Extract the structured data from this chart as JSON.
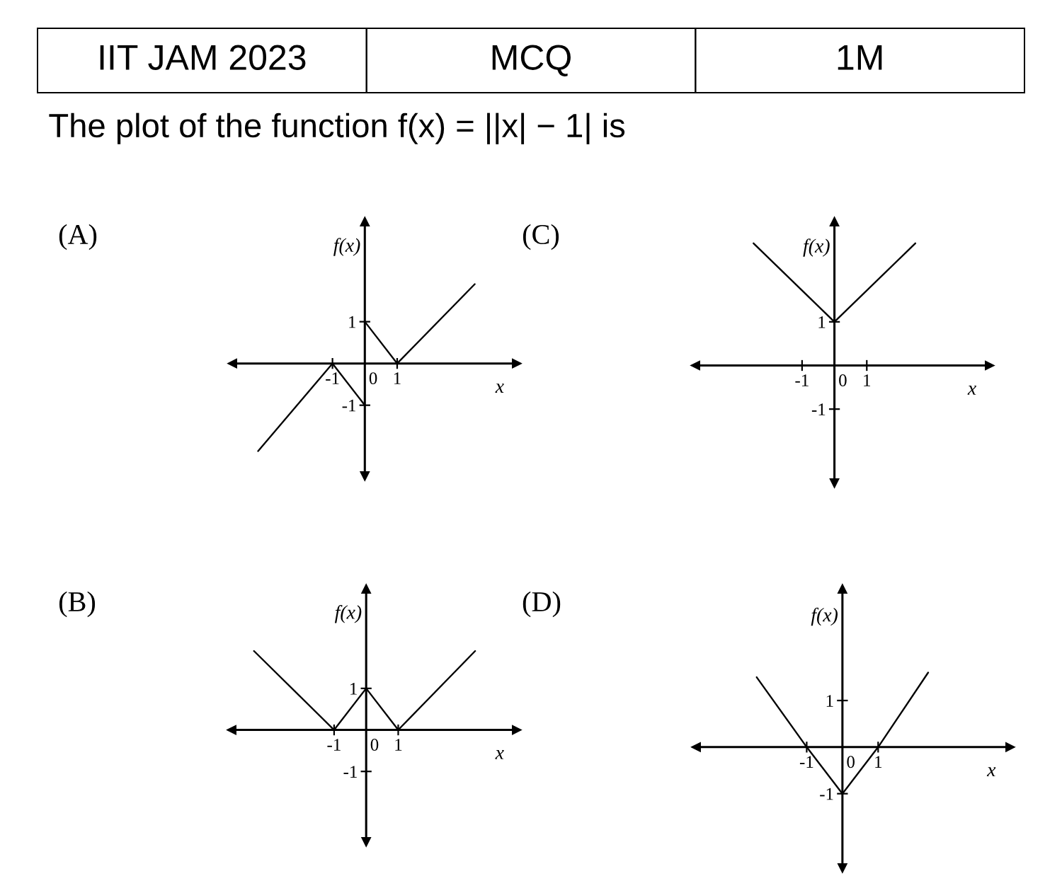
{
  "chart_data": [
    {
      "type": "other",
      "title": "The plot of the function f(x) = ||x| − 1| is",
      "annotations": [
        "IIT JAM 2023",
        "MCQ",
        "1M"
      ]
    },
    {
      "type": "line",
      "title": "(A)",
      "xlabel": "x",
      "ylabel": "f(x)",
      "xlim": [
        -4.1,
        4.7
      ],
      "ylim": [
        -2.7,
        3.4
      ],
      "xticks": [
        -1,
        0,
        1
      ],
      "yticks": [
        -1,
        1
      ],
      "series": [
        {
          "color": "#000000",
          "x": [
            -3.3,
            -1,
            0
          ],
          "values": [
            -2.1,
            0,
            -1
          ]
        },
        {
          "color": "#000000",
          "x": [
            0,
            1,
            3.4
          ],
          "values": [
            1,
            0,
            1.9
          ]
        }
      ]
    },
    {
      "type": "line",
      "title": "(C)",
      "xlabel": "x",
      "ylabel": "f(x)",
      "xlim": [
        -4.3,
        4.8
      ],
      "ylim": [
        -2.7,
        3.3
      ],
      "xticks": [
        -1,
        0,
        1
      ],
      "yticks": [
        -1,
        1
      ],
      "series": [
        {
          "color": "#000000",
          "x": [
            -2.5,
            0,
            2.5
          ],
          "values": [
            2.8,
            1,
            2.8
          ]
        }
      ]
    },
    {
      "type": "line",
      "title": "(B)",
      "xlabel": "x",
      "ylabel": "f(x)",
      "xlim": [
        -4.2,
        4.7
      ],
      "ylim": [
        -2.7,
        3.4
      ],
      "xticks": [
        -1,
        0,
        1
      ],
      "yticks": [
        -1,
        1
      ],
      "series": [
        {
          "color": "#000000",
          "x": [
            -3.5,
            -1,
            0,
            1,
            3.4
          ],
          "values": [
            1.9,
            0,
            1,
            0,
            1.9
          ]
        }
      ]
    },
    {
      "type": "line",
      "title": "(D)",
      "xlabel": "x",
      "ylabel": "f(x)",
      "xlim": [
        -4.1,
        4.7
      ],
      "ylim": [
        -2.6,
        3.4
      ],
      "xticks": [
        -1,
        0,
        1
      ],
      "yticks": [
        -1,
        1
      ],
      "series": [
        {
          "color": "#000000",
          "x": [
            -2.4,
            -1,
            0,
            1,
            2.4
          ],
          "values": [
            1.5,
            0,
            -1,
            0,
            1.6
          ]
        }
      ]
    }
  ]
}
